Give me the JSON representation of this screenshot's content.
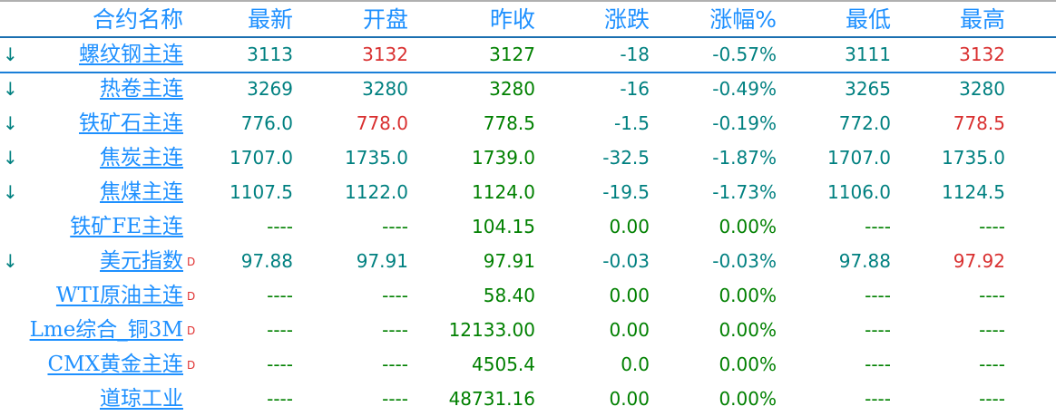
{
  "header": {
    "columns": [
      "合约名称",
      "最新",
      "开盘",
      "昨收",
      "涨跌",
      "涨幅%",
      "最低",
      "最高"
    ]
  },
  "colors": {
    "down": "#008080",
    "up": "#d93030",
    "flat": "#008000",
    "link": "#1e90ff",
    "delayed_marker": "#e03030"
  },
  "rows": [
    {
      "name": "螺纹钢主连",
      "arrow": "↓",
      "delayed": false,
      "values": [
        "3113",
        "3132",
        "3127",
        "-18",
        "-0.57%",
        "3111",
        "3132"
      ],
      "colors": [
        "down",
        "up",
        "flat",
        "down",
        "down",
        "down",
        "up"
      ]
    },
    {
      "name": "热卷主连",
      "arrow": "↓",
      "delayed": false,
      "values": [
        "3269",
        "3280",
        "3280",
        "-16",
        "-0.49%",
        "3265",
        "3280"
      ],
      "colors": [
        "down",
        "down",
        "flat",
        "down",
        "down",
        "down",
        "down"
      ]
    },
    {
      "name": "铁矿石主连",
      "arrow": "↓",
      "delayed": false,
      "values": [
        "776.0",
        "778.0",
        "778.5",
        "-1.5",
        "-0.19%",
        "772.0",
        "778.5"
      ],
      "colors": [
        "down",
        "up",
        "flat",
        "down",
        "down",
        "down",
        "up"
      ]
    },
    {
      "name": "焦炭主连",
      "arrow": "↓",
      "delayed": false,
      "values": [
        "1707.0",
        "1735.0",
        "1739.0",
        "-32.5",
        "-1.87%",
        "1707.0",
        "1735.0"
      ],
      "colors": [
        "down",
        "down",
        "flat",
        "down",
        "down",
        "down",
        "down"
      ]
    },
    {
      "name": "焦煤主连",
      "arrow": "↓",
      "delayed": false,
      "values": [
        "1107.5",
        "1122.0",
        "1124.0",
        "-19.5",
        "-1.73%",
        "1106.0",
        "1124.5"
      ],
      "colors": [
        "down",
        "down",
        "flat",
        "down",
        "down",
        "down",
        "down"
      ]
    },
    {
      "name": "铁矿FE主连",
      "arrow": "",
      "delayed": false,
      "values": [
        "----",
        "----",
        "104.15",
        "0.00",
        "0.00%",
        "----",
        "----"
      ],
      "colors": [
        "flat",
        "flat",
        "flat",
        "flat",
        "flat",
        "flat",
        "flat"
      ]
    },
    {
      "name": "美元指数",
      "arrow": "↓",
      "delayed": true,
      "values": [
        "97.88",
        "97.91",
        "97.91",
        "-0.03",
        "-0.03%",
        "97.88",
        "97.92"
      ],
      "colors": [
        "down",
        "down",
        "flat",
        "down",
        "down",
        "down",
        "up"
      ]
    },
    {
      "name": "WTI原油主连",
      "arrow": "",
      "delayed": true,
      "values": [
        "----",
        "----",
        "58.40",
        "0.00",
        "0.00%",
        "----",
        "----"
      ],
      "colors": [
        "flat",
        "flat",
        "flat",
        "flat",
        "flat",
        "flat",
        "flat"
      ]
    },
    {
      "name": "Lme综合_铜3M",
      "arrow": "",
      "delayed": true,
      "values": [
        "----",
        "----",
        "12133.00",
        "0.00",
        "0.00%",
        "----",
        "----"
      ],
      "colors": [
        "flat",
        "flat",
        "flat",
        "flat",
        "flat",
        "flat",
        "flat"
      ]
    },
    {
      "name": "CMX黄金主连",
      "arrow": "",
      "delayed": true,
      "values": [
        "----",
        "----",
        "4505.4",
        "0.0",
        "0.00%",
        "----",
        "----"
      ],
      "colors": [
        "flat",
        "flat",
        "flat",
        "flat",
        "flat",
        "flat",
        "flat"
      ]
    },
    {
      "name": "道琼工业",
      "arrow": "",
      "delayed": false,
      "values": [
        "----",
        "----",
        "48731.16",
        "0.00",
        "0.00%",
        "----",
        "----"
      ],
      "colors": [
        "flat",
        "flat",
        "flat",
        "flat",
        "flat",
        "flat",
        "flat"
      ]
    }
  ],
  "delayed_marker": "D"
}
